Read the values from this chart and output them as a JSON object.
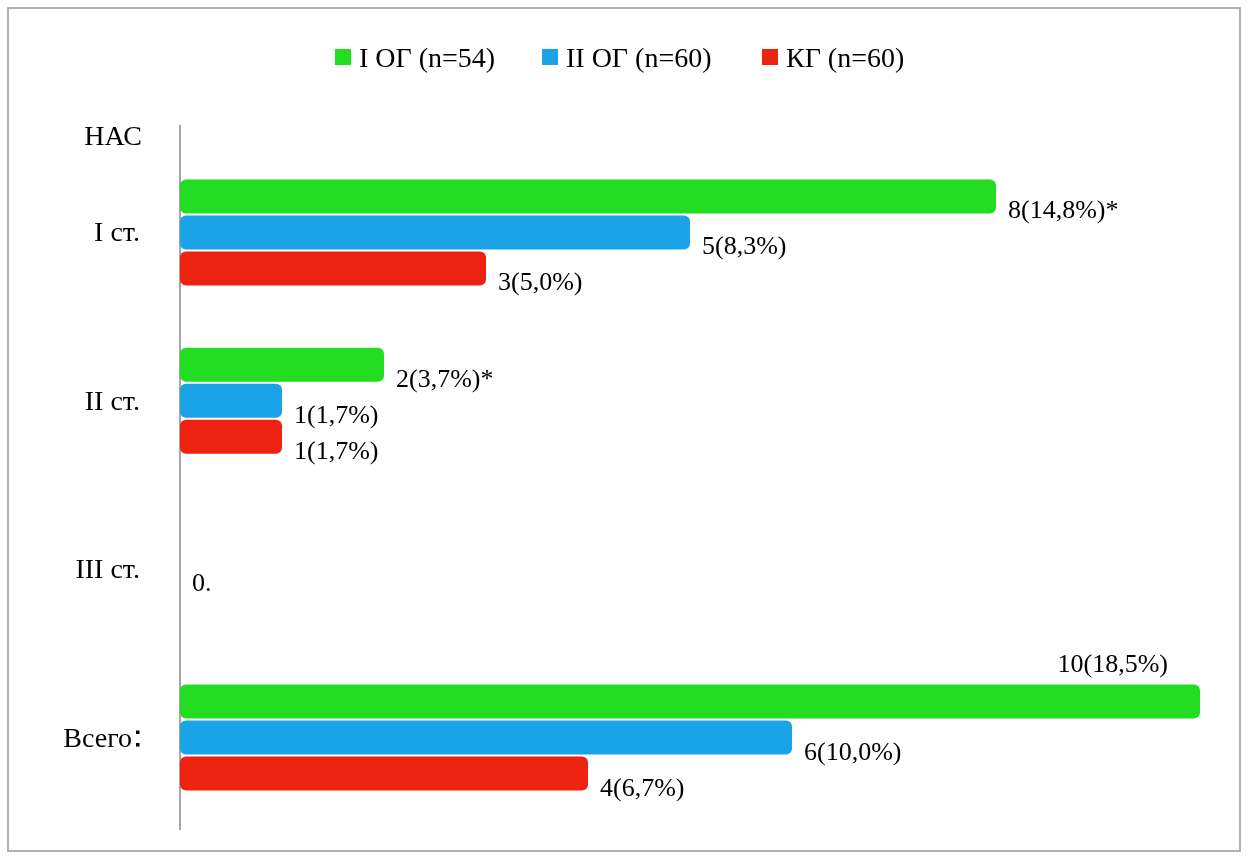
{
  "chart_data": {
    "type": "bar",
    "orientation": "horizontal",
    "ylabel": "НАС",
    "categories": [
      "I ст.",
      "II ст.",
      "III ст.",
      "Всего"
    ],
    "legend": "top",
    "series": [
      {
        "name": "I ОГ (n=54)",
        "color": "#22dd22",
        "values": [
          8,
          2,
          0,
          10
        ],
        "value_labels": [
          "8(14,8%)*",
          "2(3,7%)*",
          null,
          "10(18,5%)"
        ]
      },
      {
        "name": "II ОГ (n=60)",
        "color": "#1aa3e6",
        "values": [
          5,
          1,
          0,
          6
        ],
        "value_labels": [
          "5(8,3%)",
          "1(1,7%)",
          "0.",
          "6(10,0%)"
        ]
      },
      {
        "name": "КГ (n=60)",
        "color": "#ee2211",
        "values": [
          3,
          1,
          0,
          4
        ],
        "value_labels": [
          "3(5,0%)",
          "1(1,7%)",
          null,
          "4(6,7%)"
        ]
      }
    ]
  }
}
